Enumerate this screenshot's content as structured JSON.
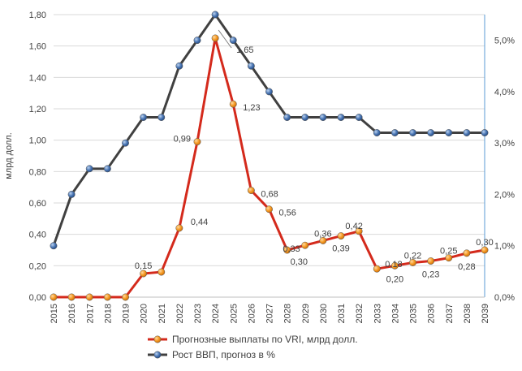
{
  "chart_data": {
    "type": "line",
    "categories": [
      "2015",
      "2016",
      "2017",
      "2018",
      "2019",
      "2020",
      "2021",
      "2022",
      "2023",
      "2024",
      "2025",
      "2026",
      "2027",
      "2028",
      "2029",
      "2030",
      "2031",
      "2032",
      "2033",
      "2034",
      "2035",
      "2036",
      "2037",
      "2038",
      "2039"
    ],
    "ylabel": "млрд долл.",
    "ylim": [
      0,
      1.8
    ],
    "y_ticks": [
      "0,00",
      "0,20",
      "0,40",
      "0,60",
      "0,80",
      "1,00",
      "1,20",
      "1,40",
      "1,60",
      "1,80"
    ],
    "y2lim": [
      0,
      5.5
    ],
    "y2_ticks": [
      "0,0%",
      "1,0%",
      "2,0%",
      "3,0%",
      "4,0%",
      "5,0%"
    ],
    "legend_position": "bottom",
    "series": [
      {
        "name": "Прогнозные выплаты по VRI, млрд долл.",
        "axis": "left",
        "color": "#d42a1c",
        "marker_color": "#f0961e",
        "values": [
          0,
          0,
          0,
          0,
          0,
          0.15,
          0.16,
          0.44,
          0.99,
          1.65,
          1.23,
          0.68,
          0.56,
          0.3,
          0.33,
          0.36,
          0.39,
          0.42,
          0.18,
          0.2,
          0.22,
          0.23,
          0.25,
          0.28,
          0.3
        ],
        "data_labels": [
          "",
          "",
          "",
          "",
          "",
          "0,15",
          "",
          "0,44",
          "0,99",
          "1,65",
          "1,23",
          "0,68",
          "0,56",
          "0,30",
          "0,33",
          "0,36",
          "0,39",
          "0,42",
          "0,18",
          "0,20",
          "0,22",
          "0,23",
          "0,25",
          "0,28",
          "0,30"
        ]
      },
      {
        "name": "Рост ВВП, прогноз в %",
        "axis": "right",
        "color": "#404040",
        "marker_color": "#4a76b4",
        "values": [
          1.0,
          2.0,
          2.5,
          2.5,
          3.0,
          3.5,
          3.5,
          4.5,
          5.0,
          5.5,
          5.0,
          4.5,
          4.0,
          3.5,
          3.5,
          3.5,
          3.5,
          3.5,
          3.2,
          3.2,
          3.2,
          3.2,
          3.2,
          3.2,
          3.2
        ]
      }
    ]
  }
}
